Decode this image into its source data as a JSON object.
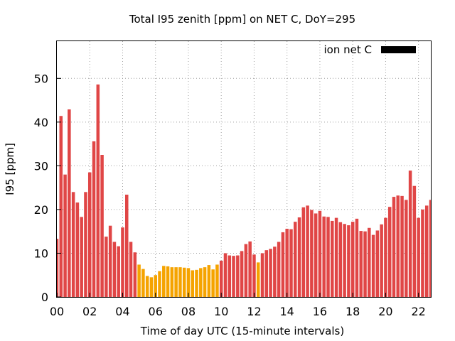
{
  "chart_data": {
    "type": "bar",
    "title": "Total I95 zenith [ppm] on NET C, DoY=295",
    "xlabel": "Time of day UTC (15-minute intervals)",
    "ylabel": "I95 [ppm]",
    "ylim": [
      0,
      58.5
    ],
    "xlim": [
      0,
      22.75
    ],
    "yticks": [
      0,
      10,
      20,
      30,
      40,
      50
    ],
    "xticks": [
      "00",
      "02",
      "04",
      "06",
      "08",
      "10",
      "12",
      "14",
      "16",
      "18",
      "20",
      "22"
    ],
    "grid": true,
    "legend": {
      "label": "ion net C",
      "position": "top-right",
      "color": "#000000"
    },
    "colors": {
      "high": "#e04646",
      "low": "#f5a300"
    },
    "x_unit": "hours UTC",
    "x": [
      0.0,
      0.25,
      0.5,
      0.75,
      1.0,
      1.25,
      1.5,
      1.75,
      2.0,
      2.25,
      2.5,
      2.75,
      3.0,
      3.25,
      3.5,
      3.75,
      4.0,
      4.25,
      4.5,
      4.75,
      5.0,
      5.25,
      5.5,
      5.75,
      6.0,
      6.25,
      6.5,
      6.75,
      7.0,
      7.25,
      7.5,
      7.75,
      8.0,
      8.25,
      8.5,
      8.75,
      9.0,
      9.25,
      9.5,
      9.75,
      10.0,
      10.25,
      10.5,
      10.75,
      11.0,
      11.25,
      11.5,
      11.75,
      12.0,
      12.25,
      12.5,
      12.75,
      13.0,
      13.25,
      13.5,
      13.75,
      14.0,
      14.25,
      14.5,
      14.75,
      15.0,
      15.25,
      15.5,
      15.75,
      16.0,
      16.25,
      16.5,
      16.75,
      17.0,
      17.25,
      17.5,
      17.75,
      18.0,
      18.25,
      18.5,
      18.75,
      19.0,
      19.25,
      19.5,
      19.75,
      20.0,
      20.25,
      20.5,
      20.75,
      21.0,
      21.25,
      21.5,
      21.75,
      22.0,
      22.25,
      22.5,
      22.75
    ],
    "values": [
      13.3,
      41.4,
      28.0,
      42.9,
      24.0,
      21.6,
      18.3,
      24.0,
      28.5,
      35.6,
      48.6,
      32.5,
      13.8,
      16.3,
      12.6,
      11.6,
      15.9,
      23.4,
      12.6,
      10.2,
      7.4,
      6.4,
      4.8,
      4.5,
      5.0,
      5.9,
      7.1,
      7.0,
      6.8,
      6.8,
      6.8,
      6.7,
      6.6,
      6.1,
      6.2,
      6.6,
      6.8,
      7.3,
      6.3,
      7.4,
      8.3,
      10.0,
      9.5,
      9.4,
      9.5,
      10.5,
      12.1,
      12.7,
      9.7,
      7.9,
      10.0,
      10.7,
      11.0,
      11.5,
      12.6,
      14.8,
      15.6,
      15.5,
      17.2,
      18.2,
      20.5,
      20.9,
      19.9,
      19.1,
      19.7,
      18.4,
      18.3,
      17.4,
      18.1,
      17.1,
      16.7,
      16.4,
      17.2,
      17.9,
      15.1,
      15.0,
      15.8,
      14.2,
      15.2,
      16.6,
      18.1,
      20.6,
      22.9,
      23.2,
      23.1,
      22.2,
      28.9,
      25.4,
      18.1,
      20.0,
      20.9,
      22.2
    ],
    "categories_by_color": [
      "high",
      "high",
      "high",
      "high",
      "high",
      "high",
      "high",
      "high",
      "high",
      "high",
      "high",
      "high",
      "high",
      "high",
      "high",
      "high",
      "high",
      "high",
      "high",
      "high",
      "low",
      "low",
      "low",
      "low",
      "low",
      "low",
      "low",
      "low",
      "low",
      "low",
      "low",
      "low",
      "low",
      "low",
      "low",
      "low",
      "low",
      "low",
      "low",
      "low",
      "high",
      "high",
      "high",
      "high",
      "high",
      "high",
      "high",
      "high",
      "high",
      "low",
      "high",
      "high",
      "high",
      "high",
      "high",
      "high",
      "high",
      "high",
      "high",
      "high",
      "high",
      "high",
      "high",
      "high",
      "high",
      "high",
      "high",
      "high",
      "high",
      "high",
      "high",
      "high",
      "high",
      "high",
      "high",
      "high",
      "high",
      "high",
      "high",
      "high",
      "high",
      "high",
      "high",
      "high",
      "high",
      "high",
      "high",
      "high",
      "high",
      "high",
      "high",
      "high"
    ]
  }
}
